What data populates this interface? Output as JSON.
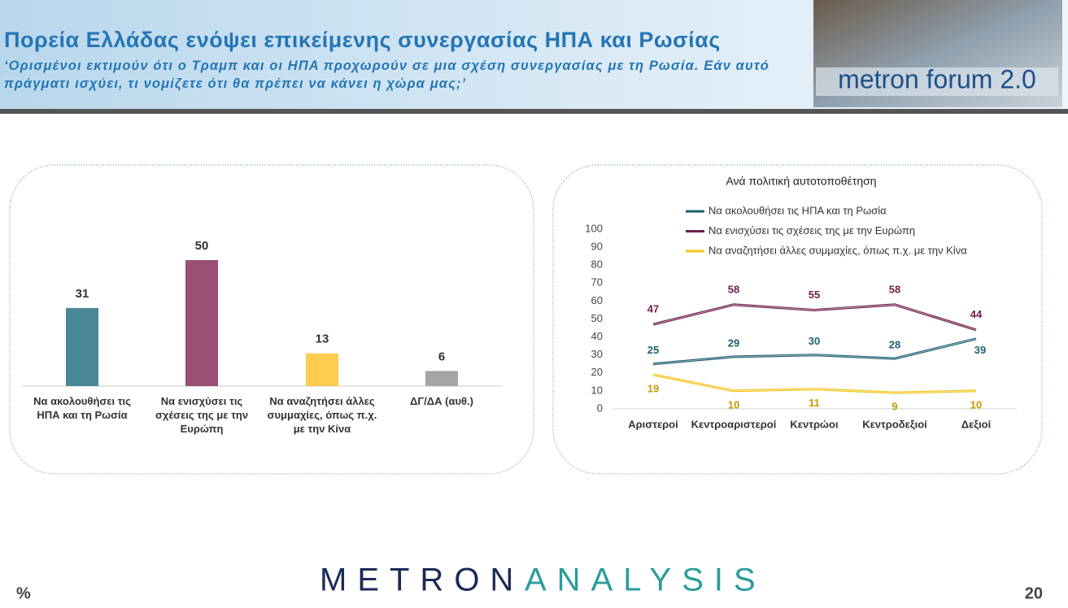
{
  "header": {
    "title": "Πορεία Ελλάδας ενόψει επικείμενης συνεργασίας ΗΠΑ και Ρωσίας",
    "subtitle": "‘Ορισμένοι εκτιμούν ότι ο Τραμπ και οι ΗΠΑ προχωρούν σε μια σχέση συνεργασίας με τη Ρωσία. Εάν αυτό πράγματι ισχύει, τι νομίζετε ότι θα πρέπει να κάνει η χώρα μας;’",
    "logo": "metron forum 2.0"
  },
  "chart_data": [
    {
      "type": "bar",
      "categories": [
        "Να ακολουθήσει τις ΗΠΑ και τη Ρωσία",
        "Να ενισχύσει τις σχέσεις της με την Ευρώπη",
        "Να αναζητήσει άλλες συμμαχίες, όπως π.χ. με την Κίνα",
        "ΔΓ/ΔΑ (αυθ.)"
      ],
      "values": [
        31,
        50,
        13,
        6
      ],
      "colors": [
        "#4a8797",
        "#9b4f74",
        "#fecd4f",
        "#a5a5a6"
      ]
    },
    {
      "type": "line",
      "title": "Ανά πολιτική αυτοτοποθέτηση",
      "categories": [
        "Αριστεροί",
        "Κεντροαριστεροί",
        "Κεντρώοι",
        "Κεντροδεξιοί",
        "Δεξιοί"
      ],
      "series": [
        {
          "name": "Να ακολουθήσει τις ΗΠΑ και τη Ρωσία",
          "color": "#1c5f6e",
          "values": [
            25,
            29,
            30,
            28,
            39
          ]
        },
        {
          "name": "Να ενισχύσει τις σχέσεις της με την Ευρώπη",
          "color": "#6e1f4a",
          "values": [
            47,
            58,
            55,
            58,
            44
          ]
        },
        {
          "name": "Να αναζητήσει άλλες συμμαχίες, όπως π.χ. με την Κίνα",
          "color": "#f5c51b",
          "values": [
            19,
            10,
            11,
            9,
            10
          ]
        }
      ],
      "ylim": [
        0,
        100
      ],
      "yticks": [
        0,
        10,
        20,
        30,
        40,
        50,
        60,
        70,
        80,
        90,
        100
      ],
      "legend": "top"
    }
  ],
  "footer": {
    "brand_left": "METRON",
    "brand_right": "ANALYSIS",
    "unit": "%",
    "page": "20"
  }
}
